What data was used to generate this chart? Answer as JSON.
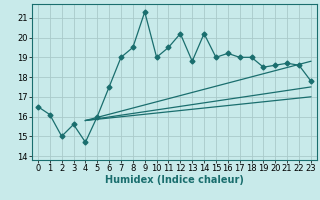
{
  "xlabel": "Humidex (Indice chaleur)",
  "bg_color": "#c8eaea",
  "grid_color": "#aacaca",
  "line_color": "#1a6e6e",
  "xlim": [
    -0.5,
    23.5
  ],
  "ylim": [
    13.8,
    21.7
  ],
  "yticks": [
    14,
    15,
    16,
    17,
    18,
    19,
    20,
    21
  ],
  "xticks": [
    0,
    1,
    2,
    3,
    4,
    5,
    6,
    7,
    8,
    9,
    10,
    11,
    12,
    13,
    14,
    15,
    16,
    17,
    18,
    19,
    20,
    21,
    22,
    23
  ],
  "main_x": [
    0,
    1,
    2,
    3,
    4,
    5,
    6,
    7,
    8,
    9,
    10,
    11,
    12,
    13,
    14,
    15,
    16,
    17,
    18,
    19,
    20,
    21,
    22,
    23
  ],
  "main_y": [
    16.5,
    16.1,
    15.0,
    15.6,
    14.7,
    16.0,
    17.5,
    19.0,
    19.5,
    21.3,
    19.0,
    19.5,
    20.2,
    18.8,
    20.2,
    19.0,
    19.2,
    19.0,
    19.0,
    18.5,
    18.6,
    18.7,
    18.6,
    17.8
  ],
  "trend1_x": [
    4,
    23
  ],
  "trend1_y": [
    15.8,
    18.8
  ],
  "trend2_x": [
    4,
    23
  ],
  "trend2_y": [
    15.8,
    17.5
  ],
  "trend3_x": [
    4,
    23
  ],
  "trend3_y": [
    15.8,
    17.0
  ],
  "tick_fontsize": 6,
  "xlabel_fontsize": 7,
  "marker_size": 2.5,
  "line_width": 0.9
}
